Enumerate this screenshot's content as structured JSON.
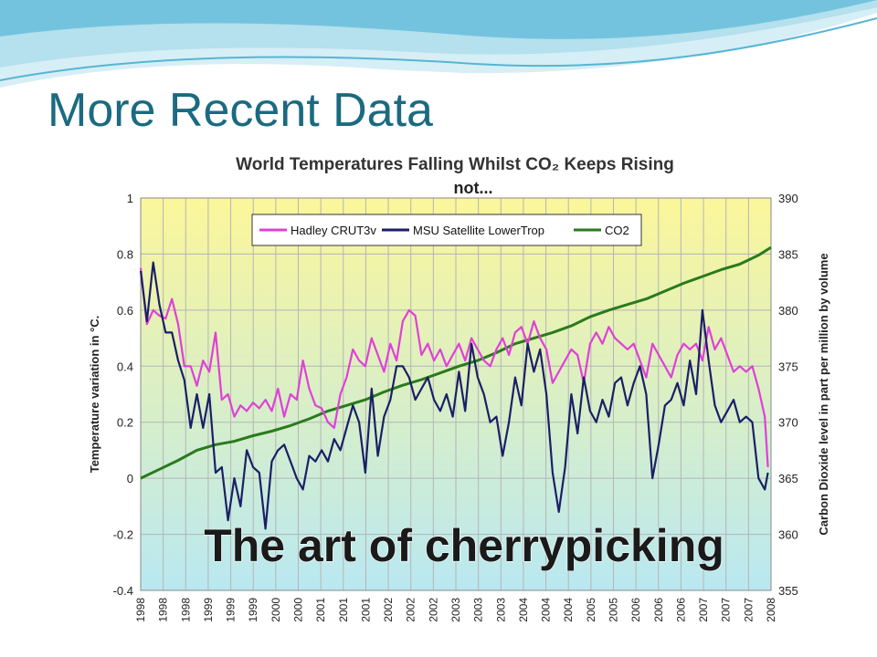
{
  "slide": {
    "title": "More Recent Data"
  },
  "colors": {
    "title": "#1b6a80",
    "wave": "#56b5d4",
    "bg_top": "#fbf69a",
    "bg_bottom": "#b9e8f1",
    "hadley": "#e040d8",
    "msu": "#1b1f66",
    "co2": "#2a7a1c",
    "overlay_text": "#1a1a1a"
  },
  "chart_data": {
    "type": "line",
    "title": "World Temperatures Falling Whilst CO₂ Keeps Rising",
    "subtitle": "not...",
    "overlay_text": "The art of cherrypicking",
    "ylabel_left": "Temperature variation in °C.",
    "ylabel_right": "Carbon Dioxide level in part per million by volume",
    "ylim_left": [
      -0.4,
      1
    ],
    "ylim_right": [
      355,
      390
    ],
    "yticks_left": [
      "1",
      "0.8",
      "0.6",
      "0.4",
      "0.2",
      "0",
      "-0.2",
      "-0.4"
    ],
    "yticks_right": [
      "390",
      "385",
      "380",
      "375",
      "370",
      "365",
      "360",
      "355"
    ],
    "xticks": [
      "1998",
      "1998",
      "1998",
      "1999",
      "1999",
      "1999",
      "2000",
      "2000",
      "2001",
      "2001",
      "2001",
      "2002",
      "2002",
      "2002",
      "2003",
      "2003",
      "2003",
      "2004",
      "2004",
      "2004",
      "2005",
      "2005",
      "2006",
      "2006",
      "2006",
      "2007",
      "2007",
      "2007",
      "2008"
    ],
    "xlim": [
      1998.0,
      2008.1
    ],
    "grid": true,
    "legend_position": "top",
    "series": [
      {
        "name": "Hadley CRUT3v",
        "axis": "left",
        "color": "#e040d8",
        "x": [
          1998.0,
          1998.1,
          1998.2,
          1998.3,
          1998.4,
          1998.5,
          1998.6,
          1998.7,
          1998.8,
          1998.9,
          1999.0,
          1999.1,
          1999.2,
          1999.3,
          1999.4,
          1999.5,
          1999.6,
          1999.7,
          1999.8,
          1999.9,
          2000.0,
          2000.1,
          2000.2,
          2000.3,
          2000.4,
          2000.5,
          2000.6,
          2000.7,
          2000.8,
          2000.9,
          2001.0,
          2001.1,
          2001.2,
          2001.3,
          2001.4,
          2001.5,
          2001.6,
          2001.7,
          2001.8,
          2001.9,
          2002.0,
          2002.1,
          2002.2,
          2002.3,
          2002.4,
          2002.5,
          2002.6,
          2002.7,
          2002.8,
          2002.9,
          2003.0,
          2003.1,
          2003.2,
          2003.3,
          2003.4,
          2003.5,
          2003.6,
          2003.7,
          2003.8,
          2003.9,
          2004.0,
          2004.1,
          2004.2,
          2004.3,
          2004.4,
          2004.5,
          2004.6,
          2004.7,
          2004.8,
          2004.9,
          2005.0,
          2005.1,
          2005.2,
          2005.3,
          2005.4,
          2005.5,
          2005.6,
          2005.7,
          2005.8,
          2005.9,
          2006.0,
          2006.1,
          2006.2,
          2006.3,
          2006.4,
          2006.5,
          2006.6,
          2006.7,
          2006.8,
          2006.9,
          2007.0,
          2007.1,
          2007.2,
          2007.3,
          2007.4,
          2007.5,
          2007.6,
          2007.7,
          2007.8,
          2007.9,
          2008.0,
          2008.05
        ],
        "values": [
          0.75,
          0.55,
          0.6,
          0.58,
          0.57,
          0.64,
          0.55,
          0.4,
          0.4,
          0.33,
          0.42,
          0.38,
          0.52,
          0.28,
          0.3,
          0.22,
          0.26,
          0.24,
          0.27,
          0.25,
          0.28,
          0.24,
          0.32,
          0.22,
          0.3,
          0.28,
          0.42,
          0.32,
          0.26,
          0.25,
          0.2,
          0.18,
          0.3,
          0.36,
          0.46,
          0.42,
          0.4,
          0.5,
          0.44,
          0.38,
          0.48,
          0.42,
          0.56,
          0.6,
          0.58,
          0.44,
          0.48,
          0.42,
          0.46,
          0.4,
          0.44,
          0.48,
          0.42,
          0.5,
          0.46,
          0.42,
          0.4,
          0.46,
          0.5,
          0.44,
          0.52,
          0.54,
          0.48,
          0.56,
          0.5,
          0.46,
          0.34,
          0.38,
          0.42,
          0.46,
          0.44,
          0.34,
          0.48,
          0.52,
          0.48,
          0.54,
          0.5,
          0.48,
          0.46,
          0.48,
          0.42,
          0.36,
          0.48,
          0.44,
          0.4,
          0.36,
          0.44,
          0.48,
          0.46,
          0.48,
          0.42,
          0.54,
          0.46,
          0.5,
          0.44,
          0.38,
          0.4,
          0.38,
          0.4,
          0.32,
          0.22,
          0.04
        ]
      },
      {
        "name": "MSU Satellite LowerTrop",
        "axis": "left",
        "color": "#1b1f66",
        "x": [
          1998.0,
          1998.1,
          1998.2,
          1998.3,
          1998.4,
          1998.5,
          1998.6,
          1998.7,
          1998.8,
          1998.9,
          1999.0,
          1999.1,
          1999.2,
          1999.3,
          1999.4,
          1999.5,
          1999.6,
          1999.7,
          1999.8,
          1999.9,
          2000.0,
          2000.1,
          2000.2,
          2000.3,
          2000.4,
          2000.5,
          2000.6,
          2000.7,
          2000.8,
          2000.9,
          2001.0,
          2001.1,
          2001.2,
          2001.3,
          2001.4,
          2001.5,
          2001.6,
          2001.7,
          2001.8,
          2001.9,
          2002.0,
          2002.1,
          2002.2,
          2002.3,
          2002.4,
          2002.5,
          2002.6,
          2002.7,
          2002.8,
          2002.9,
          2003.0,
          2003.1,
          2003.2,
          2003.3,
          2003.4,
          2003.5,
          2003.6,
          2003.7,
          2003.8,
          2003.9,
          2004.0,
          2004.1,
          2004.2,
          2004.3,
          2004.4,
          2004.5,
          2004.6,
          2004.7,
          2004.8,
          2004.9,
          2005.0,
          2005.1,
          2005.2,
          2005.3,
          2005.4,
          2005.5,
          2005.6,
          2005.7,
          2005.8,
          2005.9,
          2006.0,
          2006.1,
          2006.2,
          2006.3,
          2006.4,
          2006.5,
          2006.6,
          2006.7,
          2006.8,
          2006.9,
          2007.0,
          2007.1,
          2007.2,
          2007.3,
          2007.4,
          2007.5,
          2007.6,
          2007.7,
          2007.8,
          2007.9,
          2008.0,
          2008.05
        ],
        "values": [
          0.74,
          0.56,
          0.77,
          0.62,
          0.52,
          0.52,
          0.42,
          0.35,
          0.18,
          0.3,
          0.18,
          0.3,
          0.02,
          0.04,
          -0.15,
          0.0,
          -0.1,
          0.1,
          0.04,
          0.02,
          -0.18,
          0.06,
          0.1,
          0.12,
          0.06,
          0.0,
          -0.04,
          0.08,
          0.06,
          0.1,
          0.06,
          0.14,
          0.1,
          0.18,
          0.26,
          0.2,
          0.02,
          0.32,
          0.08,
          0.22,
          0.28,
          0.4,
          0.4,
          0.36,
          0.28,
          0.32,
          0.36,
          0.28,
          0.24,
          0.3,
          0.22,
          0.38,
          0.24,
          0.48,
          0.36,
          0.3,
          0.2,
          0.22,
          0.08,
          0.2,
          0.36,
          0.26,
          0.48,
          0.38,
          0.46,
          0.3,
          0.02,
          -0.12,
          0.04,
          0.3,
          0.16,
          0.36,
          0.24,
          0.2,
          0.28,
          0.22,
          0.34,
          0.36,
          0.26,
          0.34,
          0.4,
          0.3,
          0.0,
          0.12,
          0.26,
          0.28,
          0.34,
          0.26,
          0.42,
          0.3,
          0.6,
          0.42,
          0.26,
          0.2,
          0.24,
          0.28,
          0.2,
          0.22,
          0.2,
          0.0,
          -0.04,
          0.02
        ]
      },
      {
        "name": "CO2",
        "axis": "right",
        "color": "#2a7a1c",
        "x": [
          1998.0,
          1998.3,
          1998.6,
          1998.9,
          1999.2,
          1999.5,
          1999.8,
          2000.1,
          2000.4,
          2000.7,
          2001.0,
          2001.3,
          2001.6,
          2001.9,
          2002.2,
          2002.5,
          2002.8,
          2003.1,
          2003.4,
          2003.7,
          2004.0,
          2004.3,
          2004.6,
          2004.9,
          2005.2,
          2005.5,
          2005.8,
          2006.1,
          2006.4,
          2006.7,
          2007.0,
          2007.3,
          2007.6,
          2007.9,
          2008.1
        ],
        "values": [
          365,
          365.8,
          366.6,
          367.5,
          368,
          368.3,
          368.8,
          369.2,
          369.7,
          370.3,
          371,
          371.5,
          372,
          372.7,
          373.3,
          373.8,
          374.4,
          375,
          375.5,
          376.2,
          377,
          377.5,
          378,
          378.6,
          379.4,
          380,
          380.5,
          381,
          381.7,
          382.4,
          383,
          383.6,
          384.1,
          384.9,
          385.6
        ]
      }
    ]
  }
}
